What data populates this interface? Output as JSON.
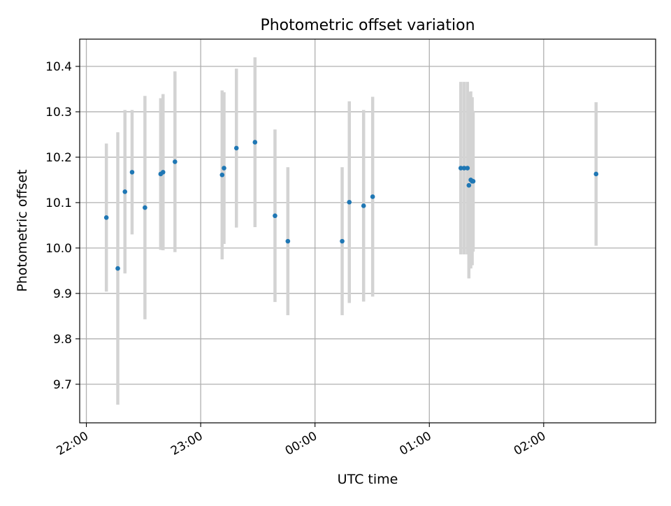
{
  "chart_data": {
    "type": "scatter",
    "title": "Photometric offset variation",
    "xlabel": "UTC time",
    "ylabel": "Photometric offset",
    "grid": true,
    "x_format": "HH:MM",
    "xlim": [
      "21:56:30",
      "02:58:45"
    ],
    "ylim": [
      9.615,
      10.46
    ],
    "x_ticks": [
      "22:00",
      "23:00",
      "00:00",
      "01:00",
      "02:00"
    ],
    "y_ticks": [
      9.7,
      9.8,
      9.9,
      10.0,
      10.1,
      10.2,
      10.3,
      10.4
    ],
    "point_color": "#1f77b4",
    "errorbar_color": "#d3d3d3",
    "points": [
      {
        "t": "22:10:30",
        "y": 10.067,
        "err": 0.163
      },
      {
        "t": "22:16:30",
        "y": 9.955,
        "err": 0.3
      },
      {
        "t": "22:20:15",
        "y": 10.124,
        "err": 0.18
      },
      {
        "t": "22:24:00",
        "y": 10.167,
        "err": 0.137
      },
      {
        "t": "22:30:45",
        "y": 10.089,
        "err": 0.246
      },
      {
        "t": "22:39:00",
        "y": 10.163,
        "err": 0.167
      },
      {
        "t": "22:40:15",
        "y": 10.167,
        "err": 0.172
      },
      {
        "t": "22:46:30",
        "y": 10.19,
        "err": 0.199
      },
      {
        "t": "23:11:15",
        "y": 10.161,
        "err": 0.186
      },
      {
        "t": "23:12:15",
        "y": 10.176,
        "err": 0.167
      },
      {
        "t": "23:18:45",
        "y": 10.22,
        "err": 0.175
      },
      {
        "t": "23:28:30",
        "y": 10.233,
        "err": 0.187
      },
      {
        "t": "23:39:00",
        "y": 10.071,
        "err": 0.19
      },
      {
        "t": "23:45:45",
        "y": 10.015,
        "err": 0.163
      },
      {
        "t": "00:14:15",
        "y": 10.015,
        "err": 0.163
      },
      {
        "t": "00:18:00",
        "y": 10.101,
        "err": 0.222
      },
      {
        "t": "00:25:30",
        "y": 10.093,
        "err": 0.211
      },
      {
        "t": "00:30:15",
        "y": 10.113,
        "err": 0.22
      },
      {
        "t": "01:16:30",
        "y": 10.176,
        "err": 0.19
      },
      {
        "t": "01:18:15",
        "y": 10.176,
        "err": 0.19
      },
      {
        "t": "01:20:00",
        "y": 10.176,
        "err": 0.19
      },
      {
        "t": "01:20:45",
        "y": 10.138,
        "err": 0.205
      },
      {
        "t": "01:21:45",
        "y": 10.15,
        "err": 0.195
      },
      {
        "t": "01:22:30",
        "y": 10.147,
        "err": 0.185
      },
      {
        "t": "01:23:00",
        "y": 10.147,
        "err": 0.155
      },
      {
        "t": "02:27:30",
        "y": 10.163,
        "err": 0.158
      }
    ]
  }
}
